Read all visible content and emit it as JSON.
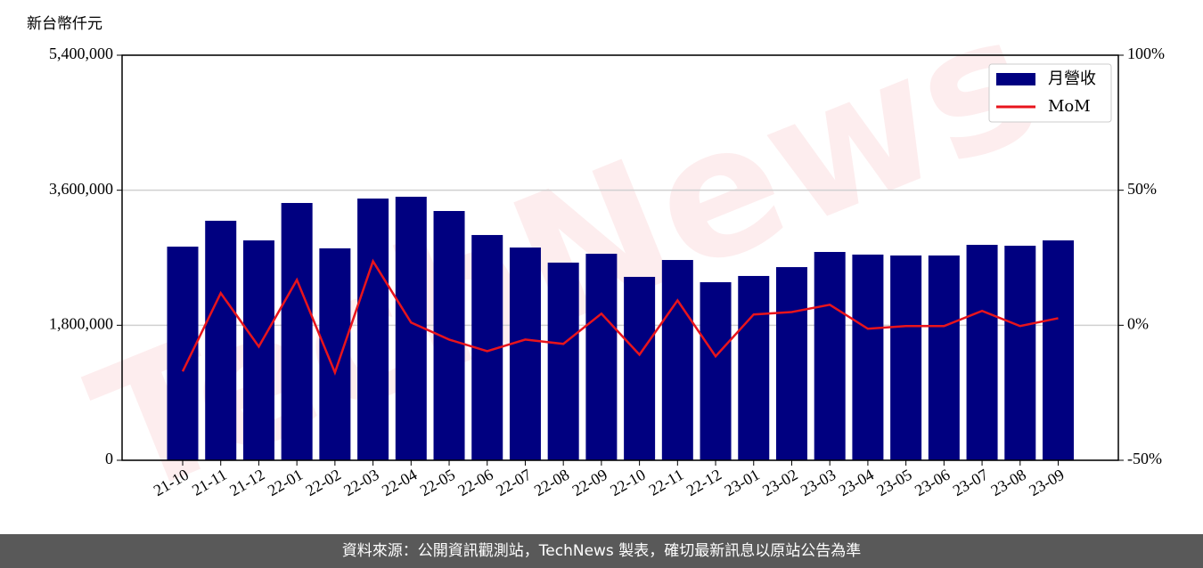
{
  "chart_data": {
    "type": "bar_line",
    "y_label": "新台幣仟元",
    "watermark": "TechNews",
    "categories": [
      "21-10",
      "21-11",
      "21-12",
      "22-01",
      "22-02",
      "22-03",
      "22-04",
      "22-05",
      "22-06",
      "22-07",
      "22-08",
      "22-09",
      "22-10",
      "22-11",
      "22-12",
      "23-01",
      "23-02",
      "23-03",
      "23-04",
      "23-05",
      "23-06",
      "23-07",
      "23-08",
      "23-09"
    ],
    "series": [
      {
        "name": "月營收",
        "color": "#000080",
        "values": [
          2848000,
          3193000,
          2931000,
          3430000,
          2825000,
          3489000,
          3513000,
          3323000,
          3003000,
          2836000,
          2635000,
          2753000,
          2445000,
          2670000,
          2374000,
          2457000,
          2575000,
          2777000,
          2742000,
          2730000,
          2730000,
          2872000,
          2860000,
          2931000
        ]
      },
      {
        "name": "MoM",
        "color": "#e8141c",
        "axis": "y2",
        "values": [
          -17.1,
          11.9,
          -7.9,
          16.8,
          -17.5,
          23.7,
          1.0,
          -5.3,
          -9.6,
          -5.3,
          -6.9,
          4.3,
          -10.9,
          9.2,
          -11.5,
          4.0,
          4.9,
          7.6,
          -1.3,
          -0.3,
          -0.3,
          5.3,
          -0.3,
          2.6
        ]
      }
    ],
    "ylim": [
      0,
      5400000
    ],
    "yticks": [
      0,
      {
        "value": 1800000,
        "label": "1,800,000"
      },
      {
        "value": 3600000,
        "label": "3,600,000"
      },
      {
        "value": 5400000,
        "label": "5,400,000"
      }
    ],
    "y2lim": [
      -50,
      100
    ],
    "y2ticks": [
      {
        "value": -50,
        "label": "-50%"
      },
      {
        "value": 0,
        "label": "0%"
      },
      {
        "value": 50,
        "label": "50%"
      },
      {
        "value": 100,
        "label": "100%"
      }
    ],
    "grid": true,
    "legend": "upper right"
  },
  "footer": "資料來源：公開資訊觀測站，TechNews 製表，確切最新訊息以原站公告為準"
}
